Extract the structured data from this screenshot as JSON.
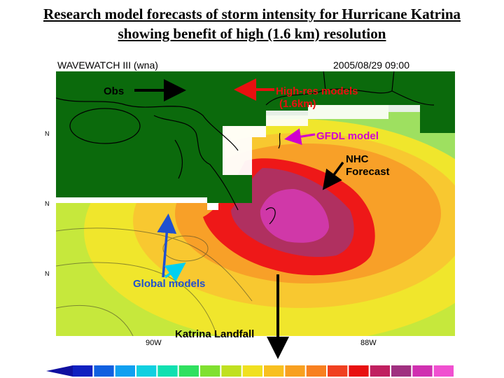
{
  "title": {
    "line1": "Research model forecasts of storm intensity for Hurricane Katrina",
    "line2": "showing benefit of high (1.6 km) resolution"
  },
  "map_header": {
    "model": "WAVEWATCH III (wna)",
    "datetime": "2005/08/29 09:00"
  },
  "lat_ticks": [
    "N",
    "N",
    "N"
  ],
  "lon_ticks": [
    "90W",
    "88W"
  ],
  "annotations": {
    "obs": "Obs",
    "high_res_line1": "High-res models",
    "high_res_line2": "(1.6km)",
    "gfdl": "GFDL model",
    "nhc_line1": "NHC",
    "nhc_line2": "Forecast",
    "global": "Global models",
    "landfall": "Katrina Landfall"
  },
  "colors": {
    "land": "#0b6a0c",
    "black_arrow": "#000000",
    "high_res_red": "#e81010",
    "gfdl_magenta": "#d000d0",
    "global_blue": "#2050d0",
    "global_cyan": "#00d0f0",
    "colorbar": [
      "#1020c0",
      "#1060e0",
      "#10a0f0",
      "#10d0e0",
      "#10e0b0",
      "#30e060",
      "#80e030",
      "#c0e020",
      "#f0e020",
      "#f8c020",
      "#f8a020",
      "#f88020",
      "#f04020",
      "#e81010",
      "#c02060",
      "#a03080",
      "#d030b0",
      "#f050d0"
    ]
  }
}
